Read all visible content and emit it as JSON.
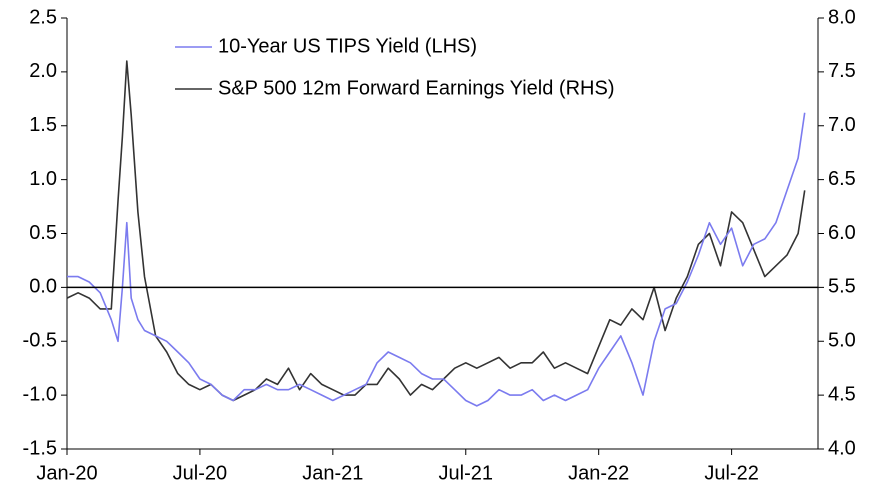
{
  "chart_data": {
    "type": "line",
    "x": [
      0,
      0.5,
      1,
      1.5,
      2,
      2.3,
      2.5,
      2.7,
      2.9,
      3.2,
      3.5,
      4,
      4.5,
      5,
      5.5,
      6,
      6.5,
      7,
      7.5,
      8,
      8.5,
      9,
      9.5,
      10,
      10.5,
      11,
      11.5,
      12,
      12.5,
      13,
      13.5,
      14,
      14.5,
      15,
      15.5,
      16,
      16.5,
      17,
      17.5,
      18,
      18.5,
      19,
      19.5,
      20,
      20.5,
      21,
      21.5,
      22,
      22.5,
      23,
      23.5,
      24,
      24.5,
      25,
      25.5,
      26,
      26.5,
      27,
      27.5,
      28,
      28.5,
      29,
      29.5,
      30,
      30.5,
      31,
      31.5,
      32,
      32.5,
      33,
      33.3
    ],
    "xlim": [
      0,
      33.9
    ],
    "xticks": [
      {
        "value": 0,
        "label": "Jan-20"
      },
      {
        "value": 6,
        "label": "Jul-20"
      },
      {
        "value": 12,
        "label": "Jan-21"
      },
      {
        "value": 18,
        "label": "Jul-21"
      },
      {
        "value": 24,
        "label": "Jan-22"
      },
      {
        "value": 30,
        "label": "Jul-22"
      }
    ],
    "ylim": [
      -1.5,
      2.5
    ],
    "yticks": [
      -1.5,
      {
        "value": -1,
        "label": "-1.0"
      },
      -0.5,
      {
        "value": 0,
        "label": "0.0"
      },
      0.5,
      {
        "value": 1,
        "label": "1.0"
      },
      1.5,
      {
        "value": 2,
        "label": "2.0"
      },
      2.5
    ],
    "y2lim": [
      4,
      8
    ],
    "y2ticks": [
      {
        "value": 4,
        "label": "4.0"
      },
      4.5,
      {
        "value": 5,
        "label": "5.0"
      },
      5.5,
      {
        "value": 6,
        "label": "6.0"
      },
      6.5,
      {
        "value": 7,
        "label": "7.0"
      },
      7.5,
      {
        "value": 8,
        "label": "8.0"
      }
    ],
    "hline": 0,
    "legend": "top",
    "series": [
      {
        "name": "10-Year US TIPS Yield (LHS)",
        "color": "#7b7bef",
        "values": [
          0.1,
          0.1,
          0.05,
          -0.05,
          -0.3,
          -0.5,
          0.0,
          0.6,
          -0.1,
          -0.3,
          -0.4,
          -0.45,
          -0.5,
          -0.6,
          -0.7,
          -0.85,
          -0.9,
          -1.0,
          -1.05,
          -0.95,
          -0.95,
          -0.9,
          -0.95,
          -0.95,
          -0.9,
          -0.95,
          -1.0,
          -1.05,
          -1.0,
          -0.95,
          -0.9,
          -0.7,
          -0.6,
          -0.65,
          -0.7,
          -0.8,
          -0.85,
          -0.85,
          -0.95,
          -1.05,
          -1.1,
          -1.05,
          -0.95,
          -1.0,
          -1.0,
          -0.95,
          -1.05,
          -1.0,
          -1.05,
          -1.0,
          -0.95,
          -0.75,
          -0.6,
          -0.45,
          -0.7,
          -1.0,
          -0.5,
          -0.2,
          -0.15,
          0.05,
          0.3,
          0.6,
          0.4,
          0.55,
          0.2,
          0.4,
          0.45,
          0.6,
          0.9,
          1.2,
          1.62
        ]
      },
      {
        "name": "S&P 500 12m Forward Earnings Yield (RHS)",
        "color": "#333333",
        "axis": "y2",
        "values": [
          5.4,
          5.45,
          5.4,
          5.3,
          5.3,
          6.3,
          6.9,
          7.6,
          7.1,
          6.2,
          5.6,
          5.05,
          4.9,
          4.7,
          4.6,
          4.55,
          4.6,
          4.5,
          4.45,
          4.5,
          4.55,
          4.65,
          4.6,
          4.75,
          4.55,
          4.7,
          4.6,
          4.55,
          4.5,
          4.5,
          4.6,
          4.6,
          4.75,
          4.65,
          4.5,
          4.6,
          4.55,
          4.65,
          4.75,
          4.8,
          4.75,
          4.8,
          4.85,
          4.75,
          4.8,
          4.8,
          4.9,
          4.75,
          4.8,
          4.75,
          4.7,
          4.95,
          5.2,
          5.15,
          5.3,
          5.2,
          5.5,
          5.1,
          5.4,
          5.6,
          5.9,
          6.0,
          5.7,
          6.2,
          6.1,
          5.85,
          5.6,
          5.7,
          5.8,
          6.0,
          6.4
        ]
      }
    ]
  }
}
